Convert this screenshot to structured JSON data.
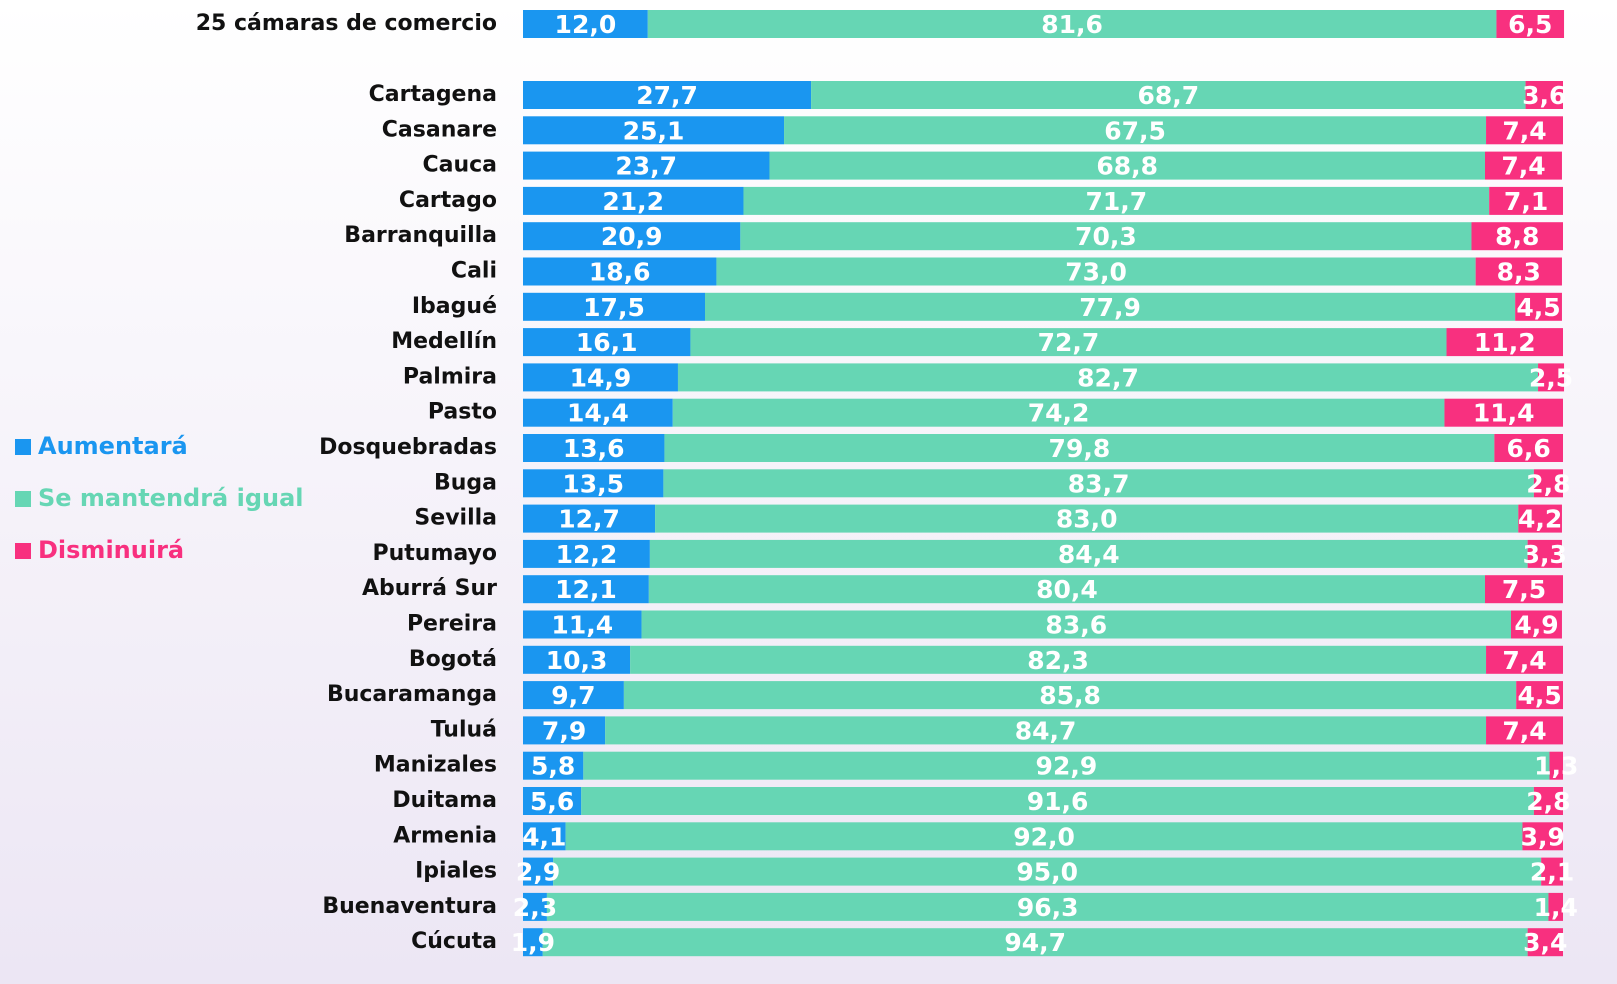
{
  "chart_data": {
    "type": "stacked-barh",
    "categories": [
      "25 cámaras de comercio",
      "Cartagena",
      "Casanare",
      "Cauca",
      "Cartago",
      "Barranquilla",
      "Cali",
      "Ibagué",
      "Medellín",
      "Palmira",
      "Pasto",
      "Dosquebradas",
      "Buga",
      "Sevilla",
      "Putumayo",
      "Aburrá Sur",
      "Pereira",
      "Bogotá",
      "Bucaramanga",
      "Tuluá",
      "Manizales",
      "Duitama",
      "Armenia",
      "Ipiales",
      "Buenaventura",
      "Cúcuta"
    ],
    "xlim": [
      0,
      100
    ],
    "legend": "left",
    "series": [
      {
        "name": "Aumentará",
        "color": "#1a96f0",
        "values": [
          12.0,
          27.7,
          25.1,
          23.7,
          21.2,
          20.9,
          18.6,
          17.5,
          16.1,
          14.9,
          14.4,
          13.6,
          13.5,
          12.7,
          12.2,
          12.1,
          11.4,
          10.3,
          9.7,
          7.9,
          5.8,
          5.6,
          4.1,
          2.9,
          2.3,
          1.9
        ],
        "value_labels": [
          "12,0",
          "27,7",
          "25,1",
          "23,7",
          "21,2",
          "20,9",
          "18,6",
          "17,5",
          "16,1",
          "14,9",
          "14,4",
          "13,6",
          "13,5",
          "12,7",
          "12,2",
          "12,1",
          "11,4",
          "10,3",
          "9,7",
          "7,9",
          "5,8",
          "5,6",
          "4,1",
          "2,9",
          "2,3",
          "1,9"
        ]
      },
      {
        "name": "Se mantendrá igual",
        "color": "#66d6b4",
        "values": [
          81.6,
          68.7,
          67.5,
          68.8,
          71.7,
          70.3,
          73.0,
          77.9,
          72.7,
          82.7,
          74.2,
          79.8,
          83.7,
          83.0,
          84.4,
          80.4,
          83.6,
          82.3,
          85.8,
          84.7,
          92.9,
          91.6,
          92.0,
          95.0,
          96.3,
          94.7
        ],
        "value_labels": [
          "81,6",
          "68,7",
          "67,5",
          "68,8",
          "71,7",
          "70,3",
          "73,0",
          "77,9",
          "72,7",
          "82,7",
          "74,2",
          "79,8",
          "83,7",
          "83,0",
          "84,4",
          "80,4",
          "83,6",
          "82,3",
          "85,8",
          "84,7",
          "92,9",
          "91,6",
          "92,0",
          "95,0",
          "96,3",
          "94,7"
        ]
      },
      {
        "name": "Disminuirá",
        "color": "#f8307f",
        "values": [
          6.5,
          3.6,
          7.4,
          7.4,
          7.1,
          8.8,
          8.3,
          4.5,
          11.2,
          2.5,
          11.4,
          6.6,
          2.8,
          4.2,
          3.3,
          7.5,
          4.9,
          7.4,
          4.5,
          7.4,
          1.3,
          2.8,
          3.9,
          2.1,
          1.4,
          3.4
        ],
        "value_labels": [
          "6,5",
          "3,6",
          "7,4",
          "7,4",
          "7,1",
          "8,8",
          "8,3",
          "4,5",
          "11,2",
          "2,5",
          "11,4",
          "6,6",
          "2,8",
          "4,2",
          "3,3",
          "7,5",
          "4,9",
          "7,4",
          "4,5",
          "7,4",
          "1,3",
          "2,8",
          "3,9",
          "2,1",
          "1,4",
          "3,4"
        ]
      }
    ]
  }
}
